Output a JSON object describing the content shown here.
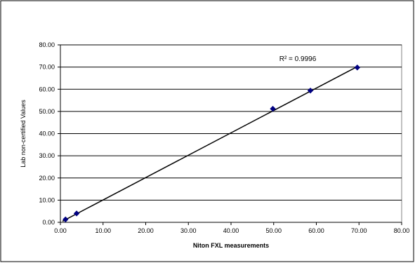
{
  "chart_data": {
    "type": "scatter",
    "title": "",
    "xlabel": "Niton FXL measurements",
    "ylabel": "Lab non-certified Values",
    "xlim": [
      0,
      80
    ],
    "ylim": [
      0,
      80
    ],
    "x_ticks": [
      "0.00",
      "10.00",
      "20.00",
      "30.00",
      "40.00",
      "50.00",
      "60.00",
      "70.00",
      "80.00"
    ],
    "y_ticks": [
      "0.00",
      "10.00",
      "20.00",
      "30.00",
      "40.00",
      "50.00",
      "60.00",
      "70.00",
      "80.00"
    ],
    "grid": "horizontal major gridlines",
    "series": [
      {
        "points": [
          {
            "x": 1.2,
            "y": 1.3
          },
          {
            "x": 3.8,
            "y": 4.0
          },
          {
            "x": 49.8,
            "y": 51.2
          },
          {
            "x": 58.6,
            "y": 59.4
          },
          {
            "x": 69.6,
            "y": 69.8
          }
        ],
        "color": "#000080",
        "marker": "diamond"
      }
    ],
    "trendline": {
      "type": "linear",
      "from": [
        0.5,
        0.5
      ],
      "to": [
        69.8,
        70.4
      ],
      "color": "#000000"
    },
    "annotation": "R² = 0.9996"
  }
}
